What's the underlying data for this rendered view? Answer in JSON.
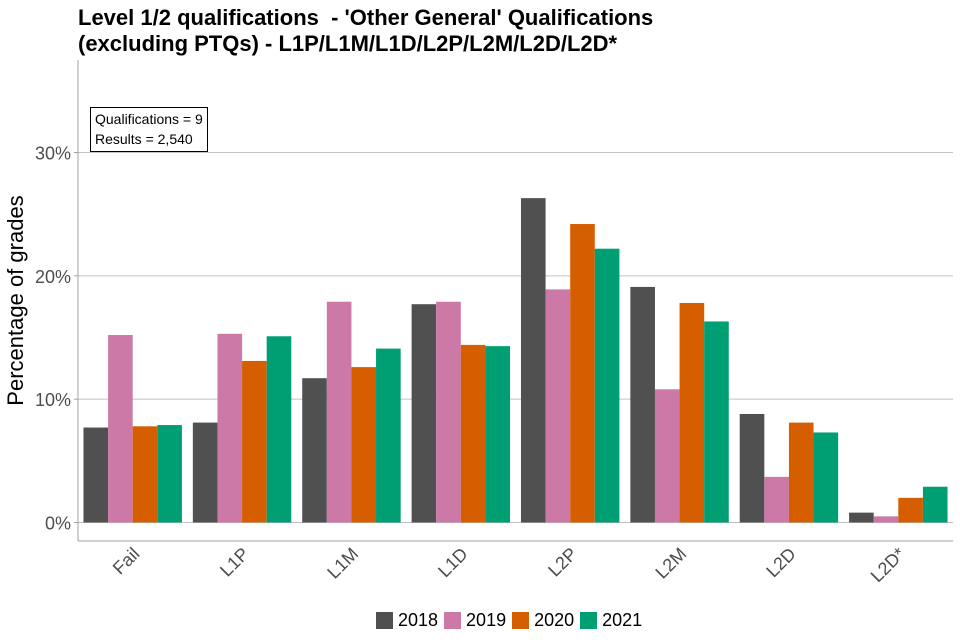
{
  "title_lines": [
    "Level 1/2 qualifications  - 'Other General' Qualifications",
    "(excluding PTQs) - L1P/L1M/L1D/L2P/L2M/L2D/L2D*"
  ],
  "info_box": {
    "line1": "Qualifications = 9",
    "line2": "Results = 2,540"
  },
  "colors": {
    "2018": "#505050",
    "2019": "#cc79a7",
    "2020": "#d55e00",
    "2021": "#009e73",
    "grid": "#c0c0c0"
  },
  "chart_data": {
    "type": "bar",
    "title": "Level 1/2 qualifications  - 'Other General' Qualifications (excluding PTQs) - L1P/L1M/L1D/L2P/L2M/L2D/L2D*",
    "xlabel": "",
    "ylabel": "Percentage of grades",
    "categories": [
      "Fail",
      "L1P",
      "L1M",
      "L1D",
      "L2P",
      "L2M",
      "L2D",
      "L2D*"
    ],
    "series": [
      {
        "name": "2018",
        "values": [
          7.7,
          8.1,
          11.7,
          17.7,
          26.3,
          19.1,
          8.8,
          0.8
        ]
      },
      {
        "name": "2019",
        "values": [
          15.2,
          15.3,
          17.9,
          17.9,
          18.9,
          10.8,
          3.7,
          0.5
        ]
      },
      {
        "name": "2020",
        "values": [
          7.8,
          13.1,
          12.6,
          14.4,
          24.2,
          17.8,
          8.1,
          2.0
        ]
      },
      {
        "name": "2021",
        "values": [
          7.9,
          15.1,
          14.1,
          14.3,
          22.2,
          16.3,
          7.3,
          2.9
        ]
      }
    ],
    "yticks": [
      0,
      10,
      20,
      30
    ],
    "ytick_labels": [
      "0%",
      "10%",
      "20%",
      "30%"
    ],
    "ylim": [
      -1.5,
      37.5
    ],
    "grid": true,
    "legend_position": "bottom"
  }
}
